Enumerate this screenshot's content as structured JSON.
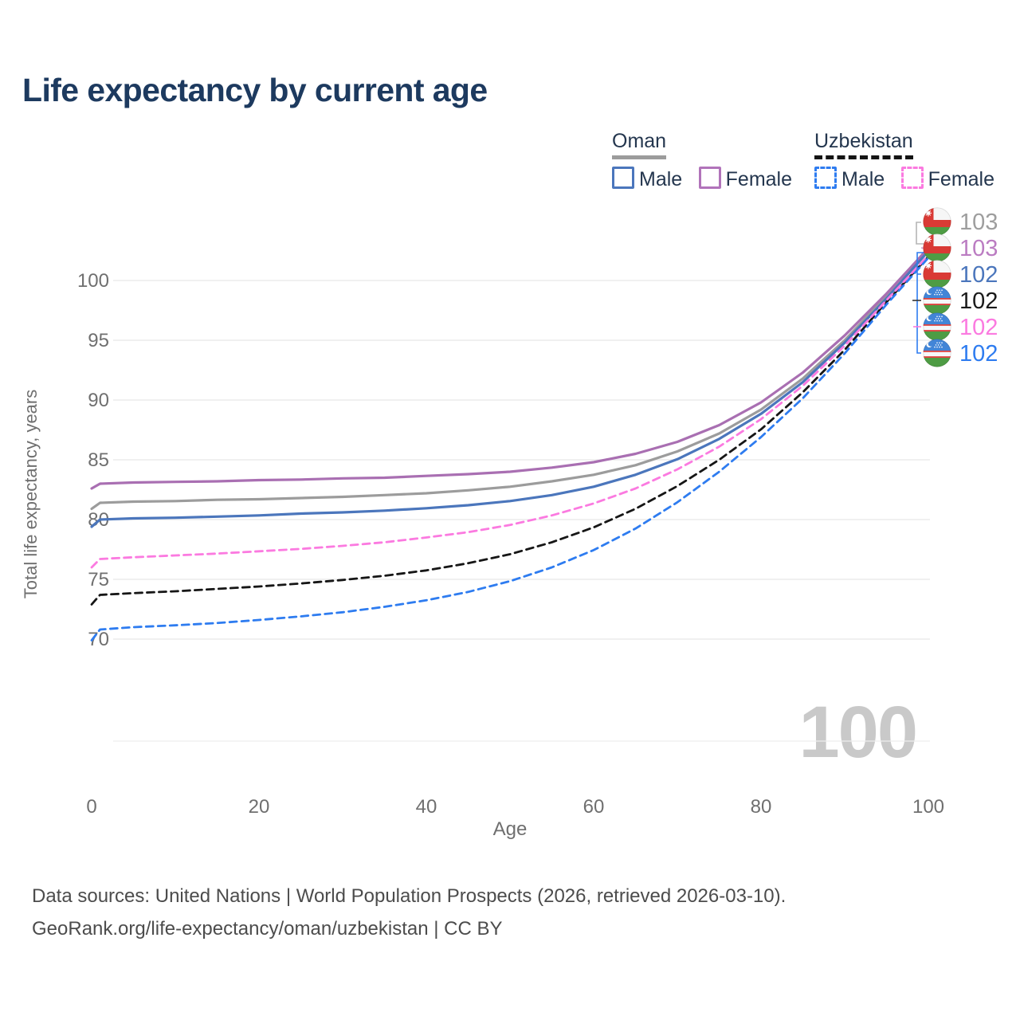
{
  "title": "Life expectancy by current age",
  "watermark": "100",
  "legend": {
    "groups": [
      {
        "id": "oman",
        "label": "Oman",
        "underline_color": "#9c9c9c",
        "underline_style": "solid",
        "items": [
          {
            "label": "Male",
            "color": "#4b76bc",
            "style": "solid"
          },
          {
            "label": "Female",
            "color": "#b173ba",
            "style": "solid"
          }
        ]
      },
      {
        "id": "uzbekistan",
        "label": "Uzbekistan",
        "underline_color": "#141414",
        "underline_style": "dashed",
        "items": [
          {
            "label": "Male",
            "color": "#2e7cf0",
            "style": "dashed"
          },
          {
            "label": "Female",
            "color": "#fb7ae0",
            "style": "dashed"
          }
        ]
      }
    ]
  },
  "x_axis": {
    "label": "Age",
    "ticks": [
      0,
      20,
      40,
      60,
      80,
      100
    ],
    "range": [
      0,
      100
    ]
  },
  "y_axis": {
    "label": "Total life expectancy, years",
    "ticks": [
      70,
      75,
      80,
      85,
      90,
      95,
      100
    ],
    "range_displayed": [
      70,
      100
    ]
  },
  "footer": {
    "line1": "Data sources: United Nations | World Population Prospects (2026, retrieved 2026-03-10).",
    "line2": "GeoRank.org/life-expectancy/oman/uzbekistan | CC BY"
  },
  "chart_data": {
    "type": "line",
    "title": "Life expectancy by current age",
    "xlabel": "Age",
    "ylabel": "Total life expectancy, years",
    "xlim": [
      0,
      100
    ],
    "ylim_gridlines": [
      70,
      100
    ],
    "grid": "horizontal",
    "x": [
      0,
      1,
      5,
      10,
      15,
      20,
      25,
      30,
      35,
      40,
      45,
      50,
      55,
      60,
      65,
      70,
      75,
      80,
      85,
      90,
      95,
      100
    ],
    "series": [
      {
        "name": "Oman — Both sexes",
        "country": "Oman",
        "sex": "both",
        "flag": "om",
        "color": "#9c9c9c",
        "dash": "solid",
        "end_label": "103",
        "end_label_color": "#9e9e9e",
        "values": [
          80.9,
          81.4,
          81.5,
          81.55,
          81.65,
          81.7,
          81.8,
          81.9,
          82.05,
          82.2,
          82.45,
          82.75,
          83.2,
          83.75,
          84.55,
          85.7,
          87.2,
          89.2,
          91.8,
          95.0,
          98.7,
          102.75
        ]
      },
      {
        "name": "Oman — Female",
        "country": "Oman",
        "sex": "female",
        "flag": "om",
        "color": "#a96fb2",
        "dash": "solid",
        "end_label": "103",
        "end_label_color": "#bb7cc2",
        "values": [
          82.6,
          83.0,
          83.1,
          83.15,
          83.2,
          83.3,
          83.35,
          83.45,
          83.5,
          83.65,
          83.8,
          84.0,
          84.35,
          84.8,
          85.5,
          86.5,
          87.9,
          89.8,
          92.3,
          95.4,
          98.9,
          102.7
        ]
      },
      {
        "name": "Oman — Male",
        "country": "Oman",
        "sex": "male",
        "flag": "om",
        "color": "#4b76bc",
        "dash": "solid",
        "end_label": "102",
        "end_label_color": "#4b76bc",
        "values": [
          79.4,
          80.0,
          80.1,
          80.15,
          80.25,
          80.35,
          80.5,
          80.6,
          80.75,
          80.95,
          81.2,
          81.55,
          82.05,
          82.75,
          83.75,
          85.05,
          86.75,
          88.85,
          91.5,
          94.8,
          98.5,
          102.45
        ]
      },
      {
        "name": "Uzbekistan — Both sexes",
        "country": "Uzbekistan",
        "sex": "both",
        "flag": "uz",
        "color": "#161616",
        "dash": "dashed",
        "end_label": "102",
        "end_label_color": "#1a1a1a",
        "values": [
          72.9,
          73.7,
          73.85,
          74.0,
          74.2,
          74.4,
          74.65,
          74.95,
          75.3,
          75.75,
          76.35,
          77.1,
          78.1,
          79.35,
          80.9,
          82.8,
          85.0,
          87.55,
          90.65,
          94.2,
          98.2,
          102.0
        ]
      },
      {
        "name": "Uzbekistan — Female",
        "country": "Uzbekistan",
        "sex": "female",
        "flag": "uz",
        "color": "#fb7ae0",
        "dash": "dashed",
        "end_label": "102",
        "end_label_color": "#fb7ae0",
        "values": [
          76.0,
          76.7,
          76.85,
          77.0,
          77.15,
          77.35,
          77.55,
          77.8,
          78.1,
          78.5,
          78.95,
          79.55,
          80.35,
          81.35,
          82.6,
          84.2,
          86.1,
          88.4,
          91.2,
          94.55,
          98.35,
          102.1
        ]
      },
      {
        "name": "Uzbekistan — Male",
        "country": "Uzbekistan",
        "sex": "male",
        "flag": "uz",
        "color": "#2e7cf0",
        "dash": "dashed",
        "end_label": "102",
        "end_label_color": "#2e7cf0",
        "values": [
          69.9,
          70.8,
          71.0,
          71.15,
          71.35,
          71.6,
          71.9,
          72.25,
          72.7,
          73.25,
          73.95,
          74.85,
          76.0,
          77.45,
          79.25,
          81.45,
          84.0,
          86.9,
          90.15,
          93.9,
          98.0,
          101.9
        ]
      }
    ]
  }
}
